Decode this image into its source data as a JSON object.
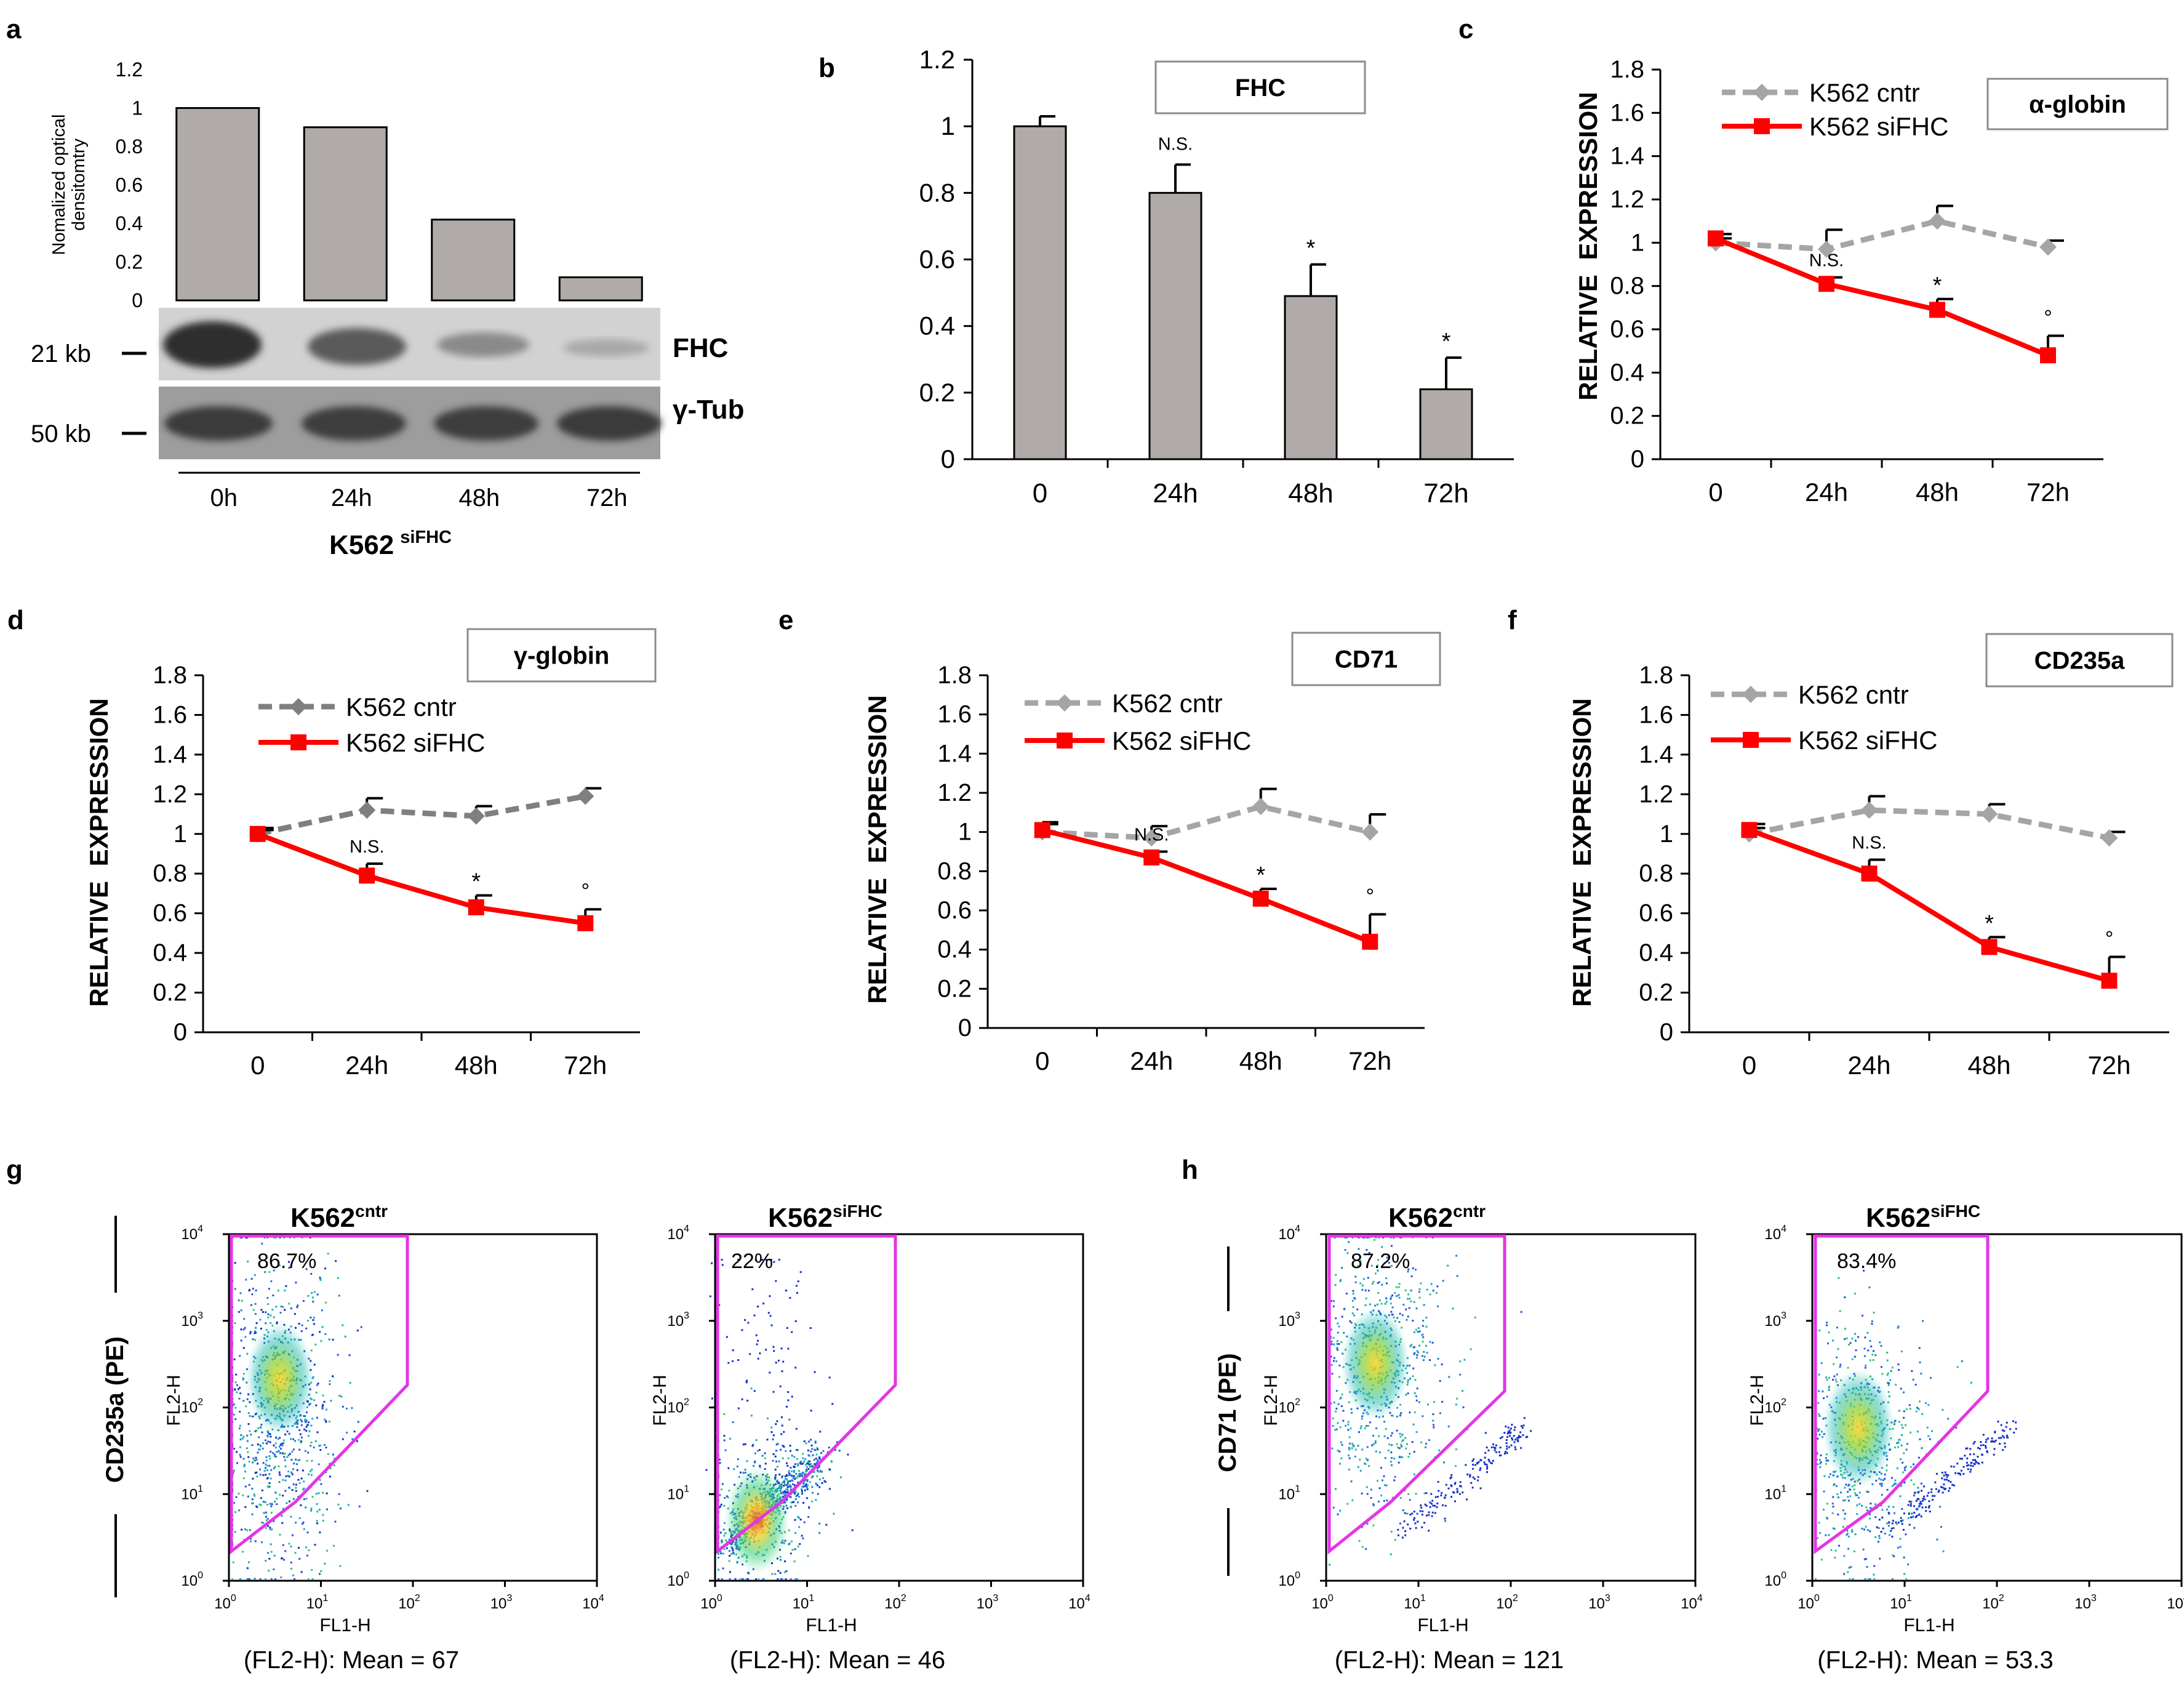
{
  "colors": {
    "bar": "#b0aba8",
    "cntr": "#a5a5a5",
    "cntr_dark": "#7f7f7f",
    "sifhc": "#ff0000",
    "gate": "#e335e6",
    "axis": "#000000"
  },
  "chart_data": [
    {
      "id": "a",
      "type": "bar",
      "panel_label": "a",
      "ylabel_line1": "Nomalized optical",
      "ylabel_line2": "densitomtry",
      "categories": [
        "0h",
        "24h",
        "48h",
        "72h"
      ],
      "values": [
        1.0,
        0.9,
        0.42,
        0.12
      ],
      "ylim": [
        0,
        1.2
      ],
      "yticks": [
        "0",
        "0.2",
        "0.4",
        "0.6",
        "0.8",
        "1",
        "1.2"
      ],
      "blot_bands": [
        "FHC",
        "γ-Tub"
      ],
      "blot_sizes": [
        "21 kb",
        "50 kb"
      ],
      "xcaption": "K562",
      "xcaption_sup": "siFHC"
    },
    {
      "id": "b",
      "type": "bar",
      "panel_label": "b",
      "title": "FHC",
      "categories": [
        "0",
        "24h",
        "48h",
        "72h"
      ],
      "values": [
        1.0,
        0.8,
        0.49,
        0.21
      ],
      "errors": [
        0.03,
        0.085,
        0.095,
        0.095
      ],
      "annotations": [
        "",
        "N.S.",
        "*",
        "*"
      ],
      "ylim": [
        0,
        1.2
      ],
      "yticks": [
        "0",
        "0.2",
        "0.4",
        "0.6",
        "0.8",
        "1",
        "1.2"
      ]
    },
    {
      "id": "c",
      "type": "line",
      "panel_label": "c",
      "title": "α-globin",
      "ylabel": "RELATIVE EXPRESSION",
      "categories": [
        "0",
        "24h",
        "48h",
        "72h"
      ],
      "ylim": [
        0,
        1.8
      ],
      "yticks": [
        "0",
        "0.2",
        "0.4",
        "0.6",
        "0.8",
        "1",
        "1.2",
        "1.4",
        "1.6",
        "1.8"
      ],
      "series": [
        {
          "name": "K562 cntr",
          "values": [
            1.0,
            0.97,
            1.1,
            0.98
          ],
          "errors": [
            0.02,
            0.09,
            0.07,
            0.03
          ]
        },
        {
          "name": "K562 siFHC",
          "values": [
            1.02,
            0.81,
            0.69,
            0.48
          ],
          "errors": [
            0.02,
            0.03,
            0.05,
            0.09
          ]
        }
      ],
      "annotations": [
        "",
        "N.S.",
        "*",
        "°"
      ]
    },
    {
      "id": "d",
      "type": "line",
      "panel_label": "d",
      "title": "γ-globin",
      "ylabel": "RELATIVE EXPRESSION",
      "categories": [
        "0",
        "24h",
        "48h",
        "72h"
      ],
      "ylim": [
        0,
        1.8
      ],
      "yticks": [
        "0",
        "0.2",
        "0.4",
        "0.6",
        "0.8",
        "1",
        "1.2",
        "1.4",
        "1.6",
        "1.8"
      ],
      "series": [
        {
          "name": "K562 cntr",
          "values": [
            1.0,
            1.12,
            1.09,
            1.19
          ],
          "errors": [
            0.03,
            0.06,
            0.05,
            0.04
          ]
        },
        {
          "name": "K562 siFHC",
          "values": [
            1.0,
            0.79,
            0.63,
            0.55
          ],
          "errors": [
            0.02,
            0.06,
            0.06,
            0.07
          ]
        }
      ],
      "annotations": [
        "",
        "N.S.",
        "*",
        "°"
      ]
    },
    {
      "id": "e",
      "type": "line",
      "panel_label": "e",
      "title": "CD71",
      "ylabel": "RELATIVE EXPRESSION",
      "categories": [
        "0",
        "24h",
        "48h",
        "72h"
      ],
      "ylim": [
        0,
        1.8
      ],
      "yticks": [
        "0",
        "0.2",
        "0.4",
        "0.6",
        "0.8",
        "1",
        "1.2",
        "1.4",
        "1.6",
        "1.8"
      ],
      "series": [
        {
          "name": "K562 cntr",
          "values": [
            1.0,
            0.97,
            1.13,
            1.0
          ],
          "errors": [
            0.05,
            0.06,
            0.09,
            0.09
          ]
        },
        {
          "name": "K562 siFHC",
          "values": [
            1.01,
            0.87,
            0.66,
            0.44
          ],
          "errors": [
            0.03,
            0.03,
            0.05,
            0.14
          ]
        }
      ],
      "annotations": [
        "",
        "N.S.",
        "*",
        "°"
      ]
    },
    {
      "id": "f",
      "type": "line",
      "panel_label": "f",
      "title": "CD235a",
      "ylabel": "RELATIVE EXPRESSION",
      "categories": [
        "0",
        "24h",
        "48h",
        "72h"
      ],
      "ylim": [
        0,
        1.8
      ],
      "yticks": [
        "0",
        "0.2",
        "0.4",
        "0.6",
        "0.8",
        "1",
        "1.2",
        "1.4",
        "1.6",
        "1.8"
      ],
      "series": [
        {
          "name": "K562 cntr",
          "values": [
            1.0,
            1.12,
            1.1,
            0.98
          ],
          "errors": [
            0.03,
            0.07,
            0.05,
            0.03
          ]
        },
        {
          "name": "K562 siFHC",
          "values": [
            1.02,
            0.8,
            0.43,
            0.26
          ],
          "errors": [
            0.03,
            0.07,
            0.05,
            0.12
          ]
        }
      ],
      "annotations": [
        "",
        "N.S.",
        "*",
        "°"
      ]
    }
  ],
  "flow": {
    "panel_g": "g",
    "panel_h": "h",
    "g_ylabel": "CD235a (PE)",
    "h_ylabel": "CD71 (PE)",
    "plot_ylabel": "FL2-H",
    "plot_xlabel": "FL1-H",
    "ticks": [
      "10",
      "10",
      "10",
      "10",
      "10"
    ],
    "tick_exps": [
      "0",
      "1",
      "2",
      "3",
      "4"
    ],
    "plots": [
      {
        "name_base": "K562",
        "name_sup": "cntr",
        "percent": "86.7%",
        "caption": "(FL2-H): Mean = 67"
      },
      {
        "name_base": "K562",
        "name_sup": "siFHC",
        "percent": "22%",
        "caption": "(FL2-H): Mean = 46"
      },
      {
        "name_base": "K562",
        "name_sup": "cntr",
        "percent": "87.2%",
        "caption": "(FL2-H): Mean = 121"
      },
      {
        "name_base": "K562",
        "name_sup": "siFHC",
        "percent": "83.4%",
        "caption": "(FL2-H): Mean = 53.3"
      }
    ]
  }
}
